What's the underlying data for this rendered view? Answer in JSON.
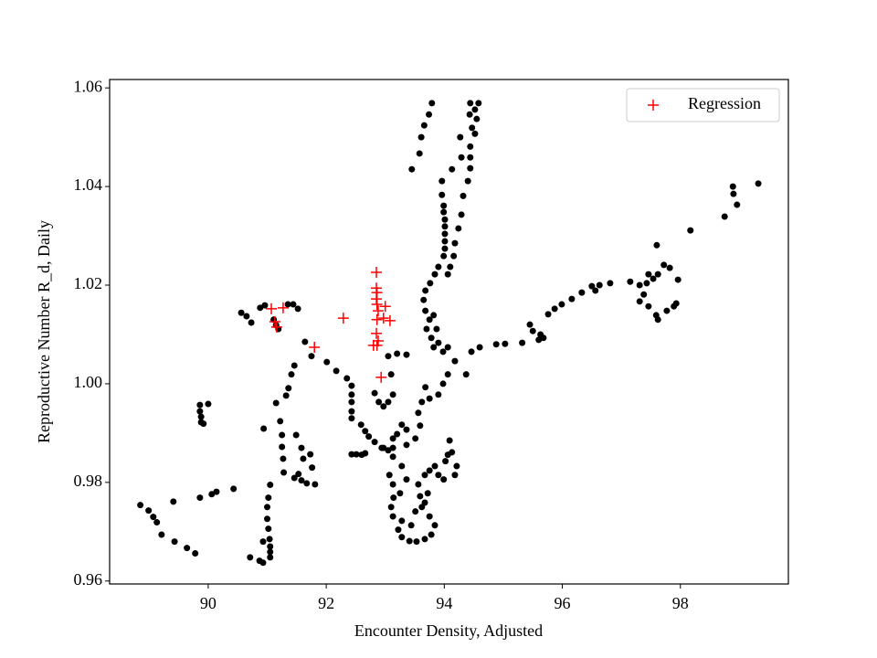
{
  "chart_data": {
    "type": "scatter",
    "xlabel": "Encounter Density, Adjusted",
    "ylabel": "Reproductive Number R_d, Daily",
    "xlim": [
      88.33,
      99.83
    ],
    "ylim": [
      0.9594,
      1.0617
    ],
    "xticks": [
      90,
      92,
      94,
      96,
      98
    ],
    "yticks": [
      0.96,
      0.98,
      {
        "value": 1.0,
        "label": "1.00"
      },
      1.02,
      1.04,
      1.06
    ],
    "legend": "upper right",
    "series": [
      {
        "color": "#000000",
        "marker": "o",
        "x": [
          88.85,
          88.99,
          89.07,
          89.13,
          89.21,
          89.43,
          89.64,
          89.78,
          89.41,
          89.86,
          90.06,
          90.14,
          90.43,
          89.86,
          89.86,
          89.88,
          89.88,
          90.0,
          89.92,
          90.71,
          90.87,
          90.93,
          91.05,
          91.05,
          91.05,
          91.04,
          91.02,
          91.0,
          91.0,
          91.02,
          91.05,
          90.93,
          90.94,
          91.15,
          91.22,
          91.25,
          91.25,
          91.27,
          91.28,
          91.32,
          91.36,
          91.41,
          91.46,
          91.35,
          91.44,
          91.52,
          91.64,
          91.75,
          92.01,
          92.17,
          92.35,
          92.43,
          92.43,
          92.43,
          92.43,
          92.43,
          92.59,
          92.66,
          92.72,
          92.82,
          92.94,
          93.05,
          92.43,
          92.51,
          92.6,
          92.66,
          90.56,
          90.65,
          90.73,
          90.88,
          90.96,
          91.11,
          91.15,
          91.19,
          91.49,
          91.58,
          91.61,
          91.53,
          91.46,
          91.58,
          91.73,
          91.76,
          91.81,
          91.67,
          93.96,
          93.96,
          93.99,
          93.99,
          94.01,
          94.01,
          94.01,
          94.01,
          94.01,
          93.99,
          93.9,
          93.84,
          93.76,
          93.68,
          93.65,
          93.68,
          93.75,
          93.7,
          93.78,
          93.82,
          93.79,
          93.74,
          93.66,
          93.61,
          93.58,
          93.45,
          94.44,
          94.43,
          94.47,
          94.52,
          94.55,
          94.52,
          94.58,
          94.44,
          94.44,
          94.44,
          94.4,
          94.32,
          94.29,
          94.24,
          94.18,
          94.16,
          94.1,
          94.06,
          94.27,
          94.13,
          94.29,
          93.82,
          93.87,
          93.9,
          93.98,
          94.06,
          94.18,
          94.06,
          93.98,
          93.9,
          93.75,
          93.68,
          93.62,
          93.56,
          93.59,
          93.51,
          93.36,
          93.13,
          94.37,
          94.46,
          94.6,
          94.88,
          92.97,
          93.13,
          93.28,
          93.36,
          93.25,
          93.14,
          93.1,
          93.13,
          93.22,
          93.28,
          93.41,
          93.53,
          93.67,
          93.78,
          93.84,
          93.75,
          93.62,
          93.59,
          93.56,
          93.67,
          93.75,
          93.84,
          93.9,
          93.99,
          94.02,
          94.06,
          94.13,
          94.21,
          94.18,
          94.09,
          93.72,
          93.67,
          93.51,
          93.44,
          93.28,
          93.07,
          93.13,
          92.82,
          92.89,
          92.97,
          93.05,
          93.13,
          93.1,
          93.05,
          93.2,
          93.36,
          93.28,
          93.36,
          93.2,
          93.13,
          95.03,
          95.32,
          95.45,
          95.5,
          95.63,
          95.6,
          95.68,
          95.76,
          95.87,
          95.99,
          96.16,
          96.33,
          96.5,
          96.56,
          96.63,
          96.81,
          97.15,
          97.31,
          97.38,
          97.31,
          97.46,
          97.59,
          97.62,
          97.77,
          97.89,
          97.93,
          97.54,
          97.46,
          97.43,
          97.62,
          97.72,
          97.6,
          97.82,
          97.96,
          98.17,
          98.75,
          98.89,
          98.9,
          98.96,
          99.32
        ],
        "values": [
          0.9754,
          0.9743,
          0.973,
          0.9719,
          0.9694,
          0.968,
          0.9667,
          0.9656,
          0.9761,
          0.9769,
          0.9776,
          0.9781,
          0.9787,
          0.9957,
          0.9944,
          0.9933,
          0.9922,
          0.9959,
          0.9919,
          0.9648,
          0.9641,
          0.9637,
          0.9648,
          0.9659,
          0.967,
          0.9685,
          0.9706,
          0.9726,
          0.975,
          0.9769,
          0.9795,
          0.968,
          0.9909,
          0.9961,
          0.9924,
          0.9896,
          0.9872,
          0.9848,
          0.982,
          0.9976,
          0.9991,
          1.0019,
          1.0037,
          1.0161,
          1.0161,
          1.0152,
          1.0085,
          1.0056,
          1.0044,
          1.0026,
          1.0011,
          0.9996,
          0.9978,
          0.9963,
          0.9944,
          0.993,
          0.9917,
          0.9904,
          0.9893,
          0.9882,
          0.987,
          0.9865,
          0.9857,
          0.9857,
          0.9856,
          0.9859,
          1.0144,
          1.0137,
          1.0124,
          1.0154,
          1.0159,
          1.013,
          1.0119,
          1.0111,
          0.9896,
          0.987,
          0.9848,
          0.9817,
          0.9809,
          0.9804,
          0.9857,
          0.983,
          0.9796,
          0.9798,
          1.0411,
          1.0383,
          1.0361,
          1.0348,
          1.0333,
          1.0319,
          1.0304,
          1.0289,
          1.0274,
          1.0259,
          1.0237,
          1.0222,
          1.0204,
          1.0189,
          1.017,
          1.0148,
          1.013,
          1.0111,
          1.0093,
          1.0074,
          1.0569,
          1.0546,
          1.0524,
          1.05,
          1.0467,
          1.0435,
          1.0569,
          1.0546,
          1.0519,
          1.0507,
          1.0537,
          1.0556,
          1.0569,
          1.0481,
          1.0459,
          1.0437,
          1.0411,
          1.0381,
          1.0343,
          1.0315,
          1.0285,
          1.0259,
          1.0237,
          1.0222,
          1.05,
          1.0435,
          1.0459,
          1.0139,
          1.0111,
          1.0083,
          1.0065,
          1.0074,
          1.0046,
          1.0019,
          1.0,
          0.9978,
          0.997,
          0.9993,
          0.9963,
          0.9941,
          0.9915,
          0.9889,
          0.9876,
          0.987,
          1.0019,
          1.0065,
          1.0074,
          1.008,
          0.987,
          0.9852,
          0.9833,
          0.9806,
          0.9778,
          0.9769,
          0.975,
          0.9731,
          0.9704,
          0.9689,
          0.9681,
          0.968,
          0.9685,
          0.9694,
          0.9713,
          0.9731,
          0.975,
          0.9772,
          0.9796,
          0.9815,
          0.9824,
          0.9833,
          0.9815,
          0.9806,
          0.9843,
          0.9856,
          0.9861,
          0.9833,
          0.9815,
          0.9885,
          0.9778,
          0.9759,
          0.9741,
          0.9713,
          0.9722,
          0.9815,
          0.9796,
          0.9981,
          0.9963,
          0.9954,
          0.9963,
          0.9978,
          1.0019,
          1.0056,
          1.0061,
          1.0059,
          0.9917,
          0.9907,
          0.9898,
          0.9889,
          1.0081,
          1.0083,
          1.012,
          1.0107,
          1.01,
          1.0089,
          1.0093,
          1.0141,
          1.0152,
          1.0161,
          1.0172,
          1.0185,
          1.0198,
          1.0189,
          1.02,
          1.0204,
          1.0207,
          1.02,
          1.0181,
          1.0167,
          1.0157,
          1.0139,
          1.013,
          1.0148,
          1.0157,
          1.0163,
          1.0213,
          1.0222,
          1.0204,
          1.0222,
          1.0241,
          1.0281,
          1.0235,
          1.0211,
          1.0311,
          1.0339,
          1.04,
          1.0385,
          1.0363,
          1.0406
        ]
      },
      {
        "name": "Regression",
        "color": "#ff0000",
        "marker": "+",
        "x": [
          91.07,
          91.13,
          91.16,
          91.27,
          91.8,
          92.29,
          92.85,
          92.85,
          92.86,
          92.85,
          92.86,
          92.88,
          92.86,
          92.85,
          92.88,
          92.8,
          92.86,
          92.97,
          93.0,
          93.08,
          92.93
        ],
        "values": [
          1.0152,
          1.0126,
          1.0115,
          1.0154,
          1.0074,
          1.0133,
          1.0226,
          1.0194,
          1.0185,
          1.0172,
          1.0161,
          1.0148,
          1.013,
          1.0102,
          1.0087,
          1.0078,
          1.0078,
          1.0133,
          1.0157,
          1.0128,
          1.0013
        ]
      }
    ]
  }
}
